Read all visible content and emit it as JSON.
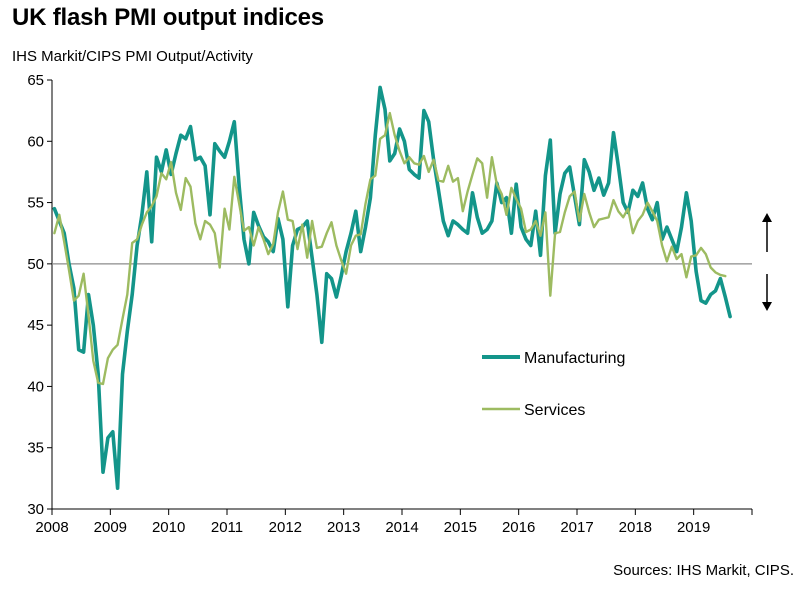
{
  "title": "UK flash PMI output indices",
  "subtitle": "IHS Markit/CIPS PMI Output/Activity",
  "source": "Sources: IHS Markit, CIPS.",
  "chart_data": {
    "type": "line",
    "xlim": [
      2008,
      2020
    ],
    "ylim": [
      30,
      65
    ],
    "yticks": [
      30,
      35,
      40,
      45,
      50,
      55,
      60,
      65
    ],
    "xticks": [
      2008,
      2009,
      2010,
      2011,
      2012,
      2013,
      2014,
      2015,
      2016,
      2017,
      2018,
      2019
    ],
    "reference_line": 50,
    "legend_position": "center-right",
    "annotation": "up and down arrows at right of the 50 line",
    "colors": {
      "Manufacturing": "#13958a",
      "Services": "#9dbb61",
      "reference": "#8c8c8c"
    },
    "series": [
      {
        "name": "Manufacturing",
        "start": "2008-01",
        "step": "month",
        "values": [
          54.5,
          53.5,
          52.5,
          50,
          48,
          43,
          42.8,
          47.5,
          45,
          41,
          33,
          35.8,
          36.3,
          31.7,
          41,
          44.5,
          47.5,
          51.5,
          54,
          57.5,
          51.8,
          58.7,
          57.5,
          59.3,
          57.3,
          59,
          60.5,
          60.2,
          61.2,
          58.5,
          58.7,
          58,
          54,
          59.8,
          59.2,
          58.7,
          60,
          61.6,
          56.3,
          52,
          50,
          54.2,
          53.1,
          52.2,
          51.8,
          51,
          53.7,
          52,
          46.5,
          51.5,
          52.8,
          53,
          53.5,
          50.5,
          47.5,
          43.6,
          49.2,
          48.8,
          47.3,
          49,
          51,
          52.5,
          54.3,
          51,
          53,
          55.4,
          60.5,
          64.4,
          62.6,
          58.4,
          59,
          61,
          60,
          57.7,
          57.3,
          57,
          62.5,
          61.6,
          58.5,
          56,
          53.5,
          52.3,
          53.5,
          53.2,
          52.8,
          52.5,
          55.8,
          53.8,
          52.5,
          52.8,
          53.5,
          56.6,
          55,
          55.4,
          52.5,
          56.5,
          53,
          52,
          51.5,
          54.3,
          50.7,
          57.2,
          60.1,
          52.5,
          55.7,
          57.4,
          57.9,
          55.5,
          53.2,
          58.5,
          57.5,
          56,
          57,
          55.6,
          56.6,
          60.7,
          58,
          55,
          54.2,
          56,
          55.5,
          56.6,
          54.5,
          53.6,
          55,
          52,
          53,
          52,
          51,
          53,
          55.8,
          53.5,
          49.4,
          47,
          46.8,
          47.5,
          47.8,
          48.8,
          47.3,
          45.7
        ]
      },
      {
        "name": "Services",
        "start": "2008-01",
        "step": "month",
        "values": [
          52.5,
          54,
          51.8,
          49.5,
          47,
          47.4,
          49.2,
          45.8,
          42.1,
          40.3,
          40.2,
          42.3,
          43,
          43.4,
          45.5,
          47.5,
          51.7,
          52,
          53.2,
          54.2,
          54.7,
          55.5,
          57.4,
          56.9,
          58.3,
          55.8,
          54.4,
          57,
          56.3,
          53.3,
          52,
          53.5,
          53.2,
          52.5,
          49.7,
          54.5,
          52.8,
          57.1,
          54.9,
          52.7,
          53,
          51.5,
          53,
          52,
          50.8,
          51.6,
          54.2,
          55.9,
          53.6,
          53.5,
          51.2,
          53.2,
          50.5,
          53.5,
          51.3,
          51.4,
          52.5,
          53.4,
          51.5,
          50.3,
          49.2,
          51.5,
          52.3,
          52.4,
          54.9,
          56.9,
          57.2,
          60.2,
          60.5,
          62.3,
          60.5,
          59.2,
          58.2,
          58.7,
          58.2,
          58.1,
          58.8,
          57.5,
          58.5,
          56.8,
          56.7,
          58,
          56.7,
          57,
          54.3,
          55.9,
          57.3,
          58.6,
          58.2,
          55.4,
          58.7,
          56.5,
          55.7,
          54,
          56.2,
          55.3,
          54.5,
          52.6,
          52.8,
          53.5,
          52.3,
          54.2,
          47.4,
          52.5,
          52.6,
          54.2,
          55.5,
          55.9,
          53.5,
          55.7,
          54.2,
          53,
          53.6,
          53.7,
          53.8,
          55.2,
          54.3,
          53.8,
          54.5,
          52.5,
          53.5,
          54,
          55,
          54.3,
          53.5,
          51.5,
          50.2,
          51.4,
          50.4,
          50.8,
          48.9,
          50.6,
          50.7,
          51.3,
          50.8,
          49.7,
          49.3,
          49.1,
          49
        ]
      }
    ]
  }
}
